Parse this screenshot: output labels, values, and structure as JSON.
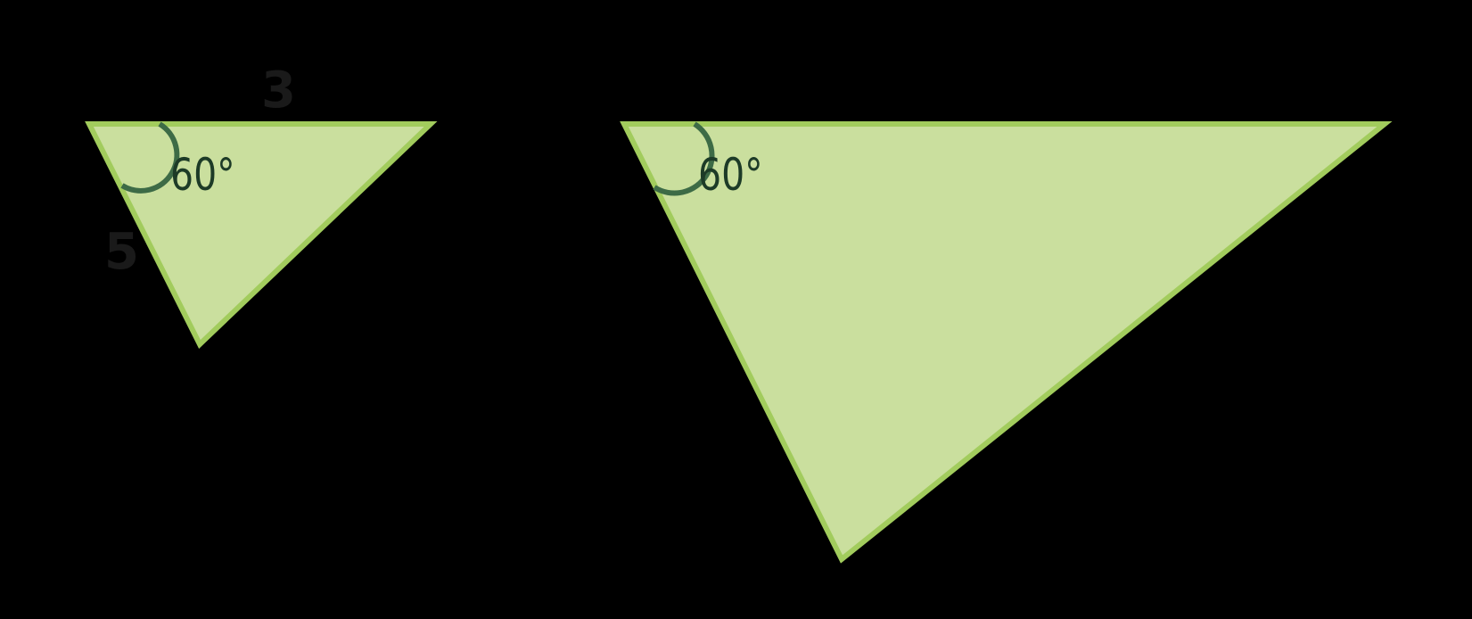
{
  "colors": {
    "background": "#000000",
    "triangle_fill": "#cadf9e",
    "triangle_edge": "#a2cc5d",
    "angle_arc": "#3d6b46",
    "label_text": "#1a1a1a"
  },
  "small_triangle": {
    "angle_label": "60°",
    "top_side_label": "3",
    "left_side_label": "5"
  },
  "large_triangle": {
    "angle_label": "60°",
    "top_side_label": "",
    "left_side_label": ""
  }
}
